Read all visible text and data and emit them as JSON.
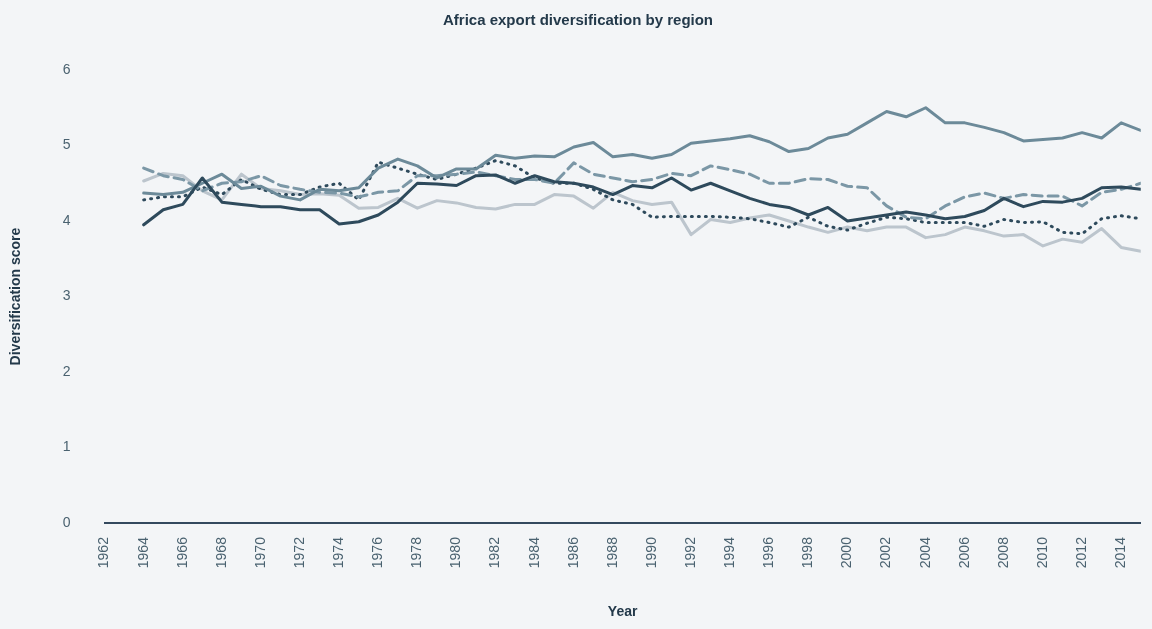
{
  "chart_data": {
    "type": "line",
    "title": "Africa export diversification by region",
    "xlabel": "Year",
    "ylabel": "Diversification score",
    "x": [
      1964,
      1965,
      1966,
      1967,
      1968,
      1969,
      1970,
      1971,
      1972,
      1973,
      1974,
      1975,
      1976,
      1977,
      1978,
      1979,
      1980,
      1981,
      1982,
      1983,
      1984,
      1985,
      1986,
      1987,
      1988,
      1989,
      1990,
      1991,
      1992,
      1993,
      1994,
      1995,
      1996,
      1997,
      1998,
      1999,
      2000,
      2001,
      2002,
      2003,
      2004,
      2005,
      2006,
      2007,
      2008,
      2009,
      2010,
      2011,
      2012,
      2013,
      2014,
      2015
    ],
    "xlim": [
      1962,
      2015
    ],
    "xticks": [
      1962,
      1964,
      1966,
      1968,
      1970,
      1972,
      1974,
      1976,
      1978,
      1980,
      1982,
      1984,
      1986,
      1988,
      1990,
      1992,
      1994,
      1996,
      1998,
      2000,
      2002,
      2004,
      2006,
      2008,
      2010,
      2012,
      2014
    ],
    "ylim": [
      0,
      6
    ],
    "yticks": [
      0,
      1,
      2,
      3,
      4,
      5,
      6
    ],
    "grid": false,
    "legend": false,
    "marker": "none",
    "series": [
      {
        "color": "#2e4a5c",
        "line_style": "solid",
        "values": [
          3.95,
          4.15,
          4.22,
          4.57,
          4.25,
          4.22,
          4.19,
          4.19,
          4.15,
          4.15,
          3.96,
          3.99,
          4.08,
          4.25,
          4.5,
          4.49,
          4.47,
          4.6,
          4.61,
          4.5,
          4.6,
          4.52,
          4.5,
          4.45,
          4.35,
          4.47,
          4.44,
          4.57,
          4.41,
          4.5,
          4.4,
          4.3,
          4.22,
          4.18,
          4.08,
          4.18,
          4.0,
          4.04,
          4.08,
          4.12,
          4.08,
          4.03,
          4.06,
          4.14,
          4.3,
          4.19,
          4.26,
          4.25,
          4.3,
          4.44,
          4.45,
          4.42
        ]
      },
      {
        "color": "#6c8a99",
        "line_style": "solid",
        "values": [
          4.37,
          4.35,
          4.38,
          4.5,
          4.62,
          4.43,
          4.46,
          4.33,
          4.28,
          4.42,
          4.4,
          4.44,
          4.7,
          4.82,
          4.73,
          4.57,
          4.69,
          4.69,
          4.87,
          4.83,
          4.86,
          4.85,
          4.98,
          5.04,
          4.85,
          4.88,
          4.83,
          4.88,
          5.03,
          5.06,
          5.09,
          5.13,
          5.05,
          4.92,
          4.96,
          5.1,
          5.15,
          5.3,
          5.45,
          5.38,
          5.5,
          5.3,
          5.3,
          5.24,
          5.17,
          5.06,
          5.08,
          5.1,
          5.17,
          5.1,
          5.3,
          5.2
        ]
      },
      {
        "color": "#7b97a6",
        "line_style": "dashed",
        "values": [
          4.7,
          4.6,
          4.55,
          4.4,
          4.5,
          4.52,
          4.6,
          4.47,
          4.42,
          4.38,
          4.37,
          4.32,
          4.38,
          4.4,
          4.6,
          4.6,
          4.62,
          4.65,
          4.6,
          4.55,
          4.55,
          4.5,
          4.77,
          4.62,
          4.57,
          4.52,
          4.55,
          4.63,
          4.6,
          4.73,
          4.68,
          4.62,
          4.5,
          4.5,
          4.56,
          4.55,
          4.46,
          4.44,
          4.2,
          4.05,
          4.03,
          4.2,
          4.32,
          4.37,
          4.3,
          4.35,
          4.33,
          4.33,
          4.2,
          4.38,
          4.42,
          4.5
        ]
      },
      {
        "color": "#2e4a5c",
        "line_style": "dotted",
        "values": [
          4.28,
          4.32,
          4.32,
          4.45,
          4.35,
          4.55,
          4.42,
          4.35,
          4.35,
          4.45,
          4.5,
          4.28,
          4.78,
          4.7,
          4.62,
          4.55,
          4.62,
          4.7,
          4.8,
          4.73,
          4.57,
          4.5,
          4.5,
          4.42,
          4.28,
          4.22,
          4.05,
          4.06,
          4.06,
          4.06,
          4.05,
          4.03,
          3.98,
          3.92,
          4.05,
          3.93,
          3.88,
          3.97,
          4.05,
          4.03,
          3.98,
          3.98,
          3.98,
          3.93,
          4.02,
          3.98,
          3.99,
          3.85,
          3.83,
          4.03,
          4.07,
          4.03
        ]
      },
      {
        "color": "#bcc5cd",
        "line_style": "solid",
        "values": [
          4.53,
          4.63,
          4.6,
          4.4,
          4.28,
          4.62,
          4.43,
          4.4,
          4.35,
          4.36,
          4.34,
          4.17,
          4.18,
          4.3,
          4.17,
          4.27,
          4.24,
          4.18,
          4.16,
          4.22,
          4.22,
          4.35,
          4.33,
          4.17,
          4.38,
          4.27,
          4.22,
          4.25,
          3.82,
          4.02,
          3.98,
          4.04,
          4.08,
          4.0,
          3.92,
          3.85,
          3.92,
          3.87,
          3.92,
          3.92,
          3.78,
          3.82,
          3.92,
          3.87,
          3.8,
          3.82,
          3.67,
          3.76,
          3.72,
          3.9,
          3.65,
          3.6
        ]
      }
    ]
  }
}
